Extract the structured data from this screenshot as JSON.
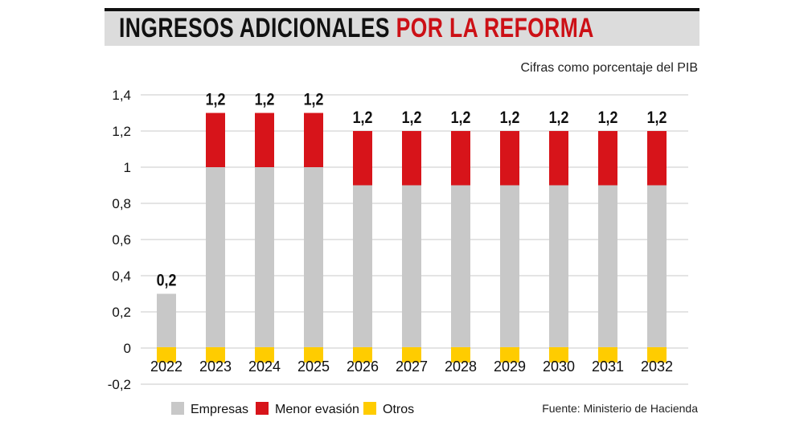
{
  "chart_data": {
    "type": "bar",
    "stacked": true,
    "title_part1": "INGRESOS ADICIONALES",
    "title_part2": "POR LA REFORMA",
    "subtitle": "Cifras como porcentaje del PIB",
    "source": "Fuente: Ministerio de Hacienda",
    "categories": [
      "2022",
      "2023",
      "2024",
      "2025",
      "2026",
      "2027",
      "2028",
      "2029",
      "2030",
      "2031",
      "2032"
    ],
    "series": [
      {
        "name": "Empresas",
        "color": "#c8c8c8",
        "values": [
          0.3,
          1.0,
          1.0,
          1.0,
          0.9,
          0.9,
          0.9,
          0.9,
          0.9,
          0.9,
          0.9
        ]
      },
      {
        "name": "Menor evasión",
        "color": "#d7141a",
        "values": [
          0,
          0.3,
          0.3,
          0.3,
          0.3,
          0.3,
          0.3,
          0.3,
          0.3,
          0.3,
          0.3
        ]
      },
      {
        "name": "Otros",
        "color": "#ffcc00",
        "values": [
          -0.08,
          -0.08,
          -0.08,
          -0.08,
          -0.08,
          -0.08,
          -0.08,
          -0.08,
          -0.08,
          -0.08,
          -0.08
        ]
      }
    ],
    "data_labels": [
      "0,2",
      "1,2",
      "1,2",
      "1,2",
      "1,2",
      "1,2",
      "1,2",
      "1,2",
      "1,2",
      "1,2",
      "1,2"
    ],
    "yticks": [
      "-0,2",
      "0",
      "0,2",
      "0,4",
      "0,6",
      "0,8",
      "1",
      "1,2",
      "1,4"
    ],
    "ytick_values": [
      -0.2,
      0,
      0.2,
      0.4,
      0.6,
      0.8,
      1,
      1.2,
      1.4
    ],
    "ylim": [
      -0.2,
      1.4
    ],
    "grid": true,
    "legend_placement": "bottom"
  }
}
